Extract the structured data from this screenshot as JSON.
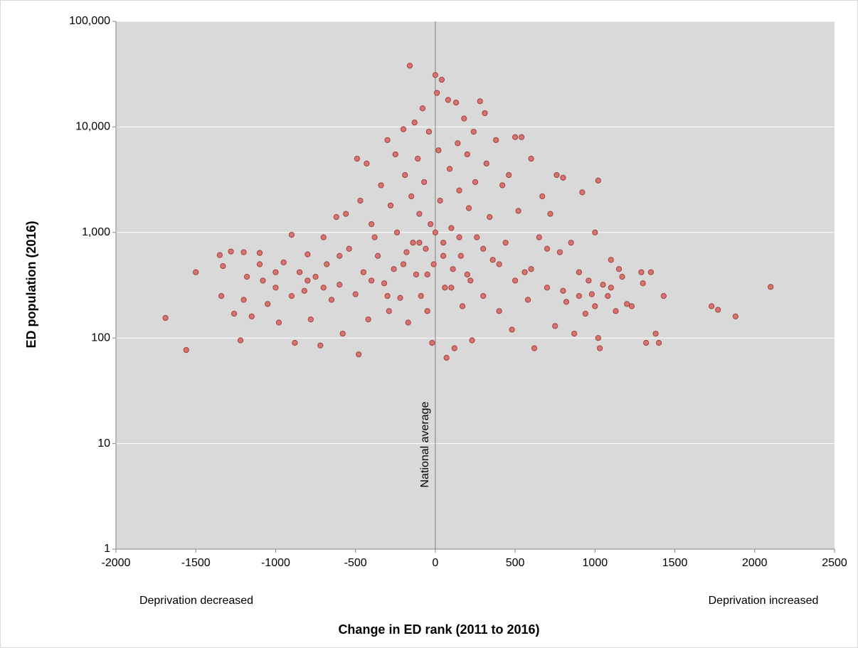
{
  "chart_data": {
    "type": "scatter",
    "x_label": "Change in ED rank (2011 to 2016)",
    "y_label": "ED population (2016)",
    "annotations": {
      "left": "Deprivation decreased",
      "right": "Deprivation increased",
      "reference": "National average"
    },
    "color": "#d9736f",
    "edge_color": "#a0403c",
    "background": "#d9d9d9",
    "grid": true,
    "y_scale": "log",
    "xlim": [
      -2000,
      2500
    ],
    "xticks": [
      -2000,
      -1500,
      -1000,
      -500,
      0,
      500,
      1000,
      1500,
      2000,
      2500
    ],
    "ylim": [
      1,
      100000
    ],
    "yticks": [
      1,
      10,
      100,
      {
        "value": 1000,
        "label": "1,000"
      },
      {
        "value": 10000,
        "label": "10,000"
      },
      {
        "value": 100000,
        "label": "100,000"
      }
    ],
    "x": [
      -1690,
      -1560,
      -1500,
      -1350,
      -1330,
      -1340,
      -1280,
      -1260,
      -1220,
      -1200,
      -1180,
      -1150,
      -1100,
      -1080,
      -1050,
      -1000,
      -980,
      -950,
      -900,
      -880,
      -850,
      -820,
      -800,
      -780,
      -750,
      -720,
      -700,
      -680,
      -650,
      -620,
      -600,
      -580,
      -560,
      -540,
      -500,
      -490,
      -480,
      -470,
      -450,
      -430,
      -420,
      -400,
      -380,
      -360,
      -340,
      -320,
      -300,
      -290,
      -280,
      -260,
      -250,
      -240,
      -220,
      -200,
      -190,
      -180,
      -170,
      -160,
      -150,
      -140,
      -130,
      -120,
      -110,
      -100,
      -90,
      -80,
      -70,
      -60,
      -50,
      -40,
      -30,
      -20,
      -10,
      0,
      10,
      20,
      30,
      40,
      50,
      60,
      70,
      80,
      90,
      100,
      110,
      120,
      130,
      140,
      150,
      160,
      170,
      180,
      200,
      210,
      220,
      230,
      240,
      250,
      260,
      280,
      300,
      310,
      320,
      340,
      360,
      380,
      400,
      420,
      440,
      460,
      480,
      500,
      520,
      540,
      560,
      580,
      600,
      620,
      650,
      670,
      700,
      720,
      750,
      760,
      780,
      800,
      820,
      850,
      870,
      900,
      920,
      940,
      960,
      980,
      1000,
      1020,
      1020,
      1030,
      1050,
      1080,
      1100,
      1130,
      1150,
      1170,
      1200,
      1230,
      1290,
      1300,
      1320,
      1350,
      1380,
      1400,
      1430,
      1730,
      1770,
      1880,
      2100,
      -600,
      -400,
      -300,
      -200,
      -100,
      -50,
      0,
      50,
      100,
      150,
      200,
      300,
      400,
      500,
      600,
      700,
      -700,
      -800,
      -900,
      -1000,
      -1100,
      -1200,
      800,
      900,
      1000,
      1100
    ],
    "values": [
      155,
      77,
      420,
      610,
      480,
      250,
      660,
      170,
      95,
      650,
      380,
      160,
      640,
      350,
      210,
      300,
      140,
      520,
      950,
      90,
      420,
      280,
      620,
      150,
      380,
      85,
      900,
      500,
      230,
      1400,
      320,
      110,
      1500,
      700,
      260,
      5000,
      70,
      2000,
      420,
      4500,
      150,
      1200,
      900,
      600,
      2800,
      330,
      7500,
      180,
      1800,
      450,
      5500,
      1000,
      240,
      9500,
      3500,
      650,
      140,
      38000,
      2200,
      800,
      11000,
      400,
      5000,
      1500,
      250,
      15000,
      3000,
      700,
      180,
      9000,
      1200,
      90,
      500,
      31000,
      21000,
      6000,
      2000,
      28000,
      800,
      300,
      65,
      18000,
      4000,
      1100,
      450,
      80,
      17000,
      7000,
      2500,
      600,
      200,
      12000,
      5500,
      1700,
      350,
      95,
      9000,
      3000,
      900,
      17500,
      250,
      13500,
      4500,
      1400,
      550,
      7500,
      180,
      2800,
      800,
      3500,
      120,
      8000,
      1600,
      8000,
      420,
      230,
      5000,
      80,
      900,
      2200,
      300,
      1500,
      130,
      3500,
      650,
      3300,
      220,
      800,
      110,
      420,
      2400,
      170,
      350,
      260,
      1000,
      3100,
      100,
      80,
      320,
      250,
      550,
      180,
      450,
      380,
      210,
      200,
      420,
      330,
      90,
      420,
      110,
      90,
      250,
      200,
      185,
      160,
      305,
      600,
      350,
      250,
      500,
      800,
      400,
      1000,
      600,
      300,
      900,
      400,
      700,
      500,
      350,
      450,
      700,
      300,
      350,
      250,
      420,
      500,
      230,
      280,
      250,
      200,
      300
    ]
  }
}
